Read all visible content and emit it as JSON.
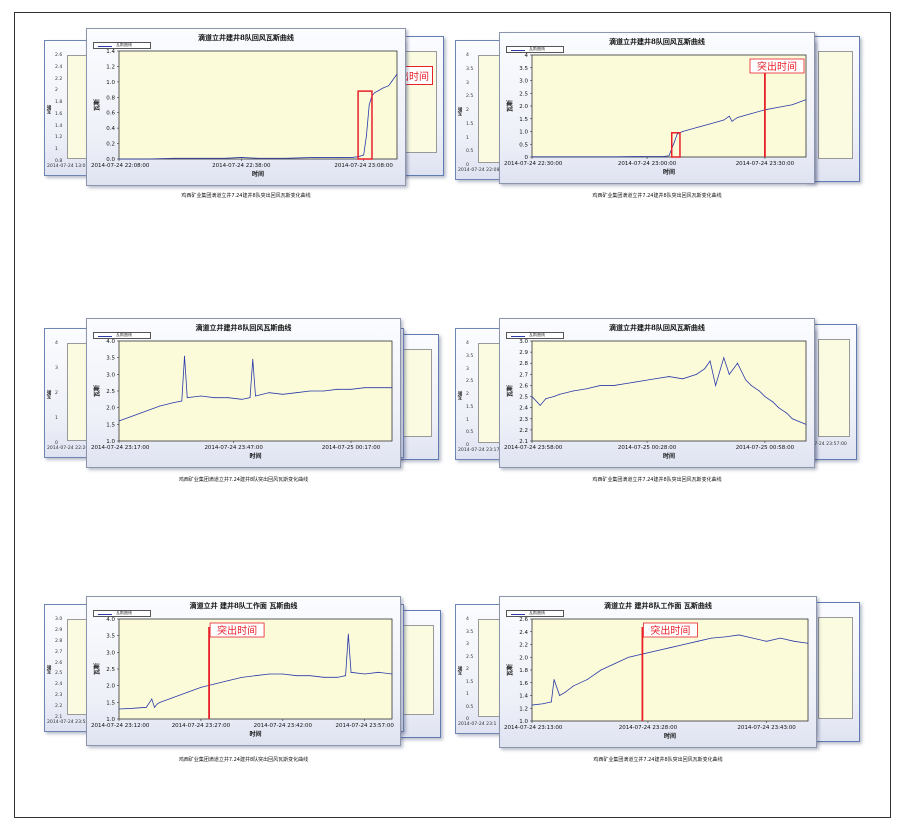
{
  "legend_label": "瓦斯曲线",
  "ylabel": "瓦斯",
  "xlabel": "时间",
  "caption": "鸡西矿业集团滴道立井7.24建井8队突出回风瓦斯变化曲线",
  "colors": {
    "series": "#2b3aa8",
    "plot_bg": "#fbfbda",
    "marker": "#e8202a"
  },
  "panels": [
    {
      "title": "滴道立井建井8队回风瓦斯曲线",
      "back_yticks": [
        "2.6",
        "2.4",
        "2.2",
        "2",
        "1.8",
        "1.6",
        "1.4",
        "1.2",
        "1",
        "0.8"
      ],
      "back_xtick": "2014-07-24 13:0",
      "back_label": "出时间",
      "back_ylabel": "瓦斯"
    },
    {
      "title": "滴道立井建井8队回风瓦斯曲线",
      "back_yticks": [
        "4",
        "3.5",
        "3",
        "2.5",
        "2",
        "1.5",
        "1",
        "0.5",
        "0"
      ],
      "back_xtick": "2014-07-24 22:08",
      "back_label": "",
      "back_ylabel": "瓦斯"
    },
    {
      "title": "滴道立井建井8队回风瓦斯曲线",
      "back_yticks": [
        "4",
        "3",
        "2",
        "1",
        "0"
      ],
      "back_xtick": "2014-07-24 22:20",
      "back_label": "",
      "back_ylabel": "瓦斯"
    },
    {
      "title": "滴道立井建井8队回风瓦斯曲线",
      "back_yticks": [
        "4",
        "3.5",
        "3",
        "2.5",
        "2",
        "1.5",
        "1",
        "0.5",
        "0"
      ],
      "back_xtick": "2014-07-24 23:17",
      "back_label": "",
      "back_ylabel": "瓦斯",
      "back_xtick2": "2014-07-24 23:57:00"
    },
    {
      "title": "滴道立井 建井8队工作面 瓦斯曲线",
      "back_yticks": [
        "3.0",
        "2.9",
        "2.8",
        "2.7",
        "2.6",
        "2.5",
        "2.4",
        "2.3",
        "2.2",
        "2.1"
      ],
      "back_xtick": "2014-07-24 23:58",
      "back_label": "",
      "back_ylabel": "瓦斯"
    },
    {
      "title": "滴道立井 建井8队工作面 瓦斯曲线",
      "back_yticks": [
        "4",
        "3.5",
        "3",
        "2.5",
        "2",
        "1.5",
        "1",
        "0.5",
        "0"
      ],
      "back_xtick": "2014-07-24 23:1",
      "back_label": "",
      "back_ylabel": "瓦斯"
    }
  ],
  "chart_data": [
    {
      "type": "line",
      "title": "滴道立井建井8队回风瓦斯曲线",
      "xlabel": "时间",
      "ylabel": "瓦斯",
      "ylim": [
        0,
        1.4
      ],
      "yticks": [
        "0.0",
        "0.2",
        "0.4",
        "0.6",
        "0.8",
        "1.0",
        "1.2",
        "1.4"
      ],
      "xticks": [
        "2014-07-24 22:08:00",
        "2014-07-24 22:38:00",
        "2014-07-24 23:08:00"
      ],
      "xtick_pos": [
        0,
        0.44,
        0.88
      ],
      "x": [
        0,
        0.05,
        0.1,
        0.2,
        0.3,
        0.38,
        0.44,
        0.5,
        0.6,
        0.7,
        0.8,
        0.84,
        0.86,
        0.87,
        0.88,
        0.89,
        0.9,
        0.91,
        0.92,
        0.93,
        0.95,
        0.97,
        0.98,
        1.0
      ],
      "values": [
        0.0,
        0.0,
        0.0,
        0.01,
        0.01,
        0.01,
        0.02,
        0.01,
        0.01,
        0.02,
        0.02,
        0.02,
        0.03,
        0.04,
        0.05,
        0.3,
        0.7,
        0.82,
        0.86,
        0.88,
        0.92,
        0.95,
        1.0,
        1.1
      ],
      "annotation": {
        "type": "rect",
        "x0": 0.86,
        "x1": 0.91,
        "y0": 0.0,
        "y1": 0.88
      }
    },
    {
      "type": "line",
      "title": "滴道立井建井8队回风瓦斯曲线",
      "xlabel": "时间",
      "ylabel": "瓦斯",
      "ylim": [
        0,
        4
      ],
      "yticks": [
        "0",
        "0.5",
        "1.0",
        "1.5",
        "2.0",
        "2.5",
        "3.0",
        "3.5",
        "4"
      ],
      "xticks": [
        "2014-07-24 22:30:00",
        "2014-07-24 23:00:00",
        "2014-07-24 23:30:00"
      ],
      "xtick_pos": [
        0,
        0.42,
        0.85
      ],
      "x": [
        0,
        0.1,
        0.2,
        0.3,
        0.4,
        0.48,
        0.5,
        0.52,
        0.53,
        0.55,
        0.6,
        0.65,
        0.7,
        0.72,
        0.73,
        0.75,
        0.8,
        0.85,
        0.9,
        0.95,
        1.0
      ],
      "values": [
        0.01,
        0.01,
        0.01,
        0.01,
        0.02,
        0.02,
        0.05,
        0.6,
        0.9,
        1.0,
        1.15,
        1.3,
        1.45,
        1.6,
        1.4,
        1.55,
        1.7,
        1.85,
        1.95,
        2.05,
        2.25
      ],
      "annotation": {
        "type": "rect",
        "x0": 0.51,
        "x1": 0.54,
        "y0": 0.0,
        "y1": 0.95
      },
      "label": "突出时间",
      "marker_x": 0.85,
      "label_text": "突出时间"
    },
    {
      "type": "line",
      "title": "滴道立井建井8队回风瓦斯曲线",
      "xlabel": "时间",
      "ylabel": "瓦斯",
      "ylim": [
        1.0,
        4.0
      ],
      "yticks": [
        "1.0",
        "1.5",
        "2.0",
        "2.5",
        "3.0",
        "3.5",
        "4.0"
      ],
      "xticks": [
        "2014-07-24 23:17:00",
        "2014-07-24 23:47:00",
        "2014-07-25 00:17:00"
      ],
      "xtick_pos": [
        0.0,
        0.42,
        0.85
      ],
      "x": [
        0.0,
        0.05,
        0.1,
        0.15,
        0.2,
        0.23,
        0.24,
        0.25,
        0.3,
        0.35,
        0.4,
        0.45,
        0.48,
        0.49,
        0.5,
        0.55,
        0.6,
        0.65,
        0.7,
        0.75,
        0.8,
        0.85,
        0.9,
        0.95,
        1.0
      ],
      "values": [
        1.6,
        1.75,
        1.9,
        2.05,
        2.15,
        2.2,
        3.55,
        2.3,
        2.35,
        2.3,
        2.3,
        2.25,
        2.3,
        3.45,
        2.35,
        2.45,
        2.4,
        2.45,
        2.5,
        2.5,
        2.55,
        2.55,
        2.6,
        2.6,
        2.6
      ]
    },
    {
      "type": "line",
      "title": "滴道立井建井8队回风瓦斯曲线",
      "xlabel": "时间",
      "ylabel": "瓦斯",
      "ylim": [
        2.1,
        3.0
      ],
      "yticks": [
        "2.1",
        "2.2",
        "2.3",
        "2.4",
        "2.5",
        "2.6",
        "2.7",
        "2.8",
        "2.9",
        "3.0"
      ],
      "xticks": [
        "2014-07-24 23:58:00",
        "2014-07-25 00:28:00",
        "2014-07-25 00:58:00"
      ],
      "xtick_pos": [
        0.0,
        0.42,
        0.85
      ],
      "x": [
        0.0,
        0.03,
        0.05,
        0.08,
        0.1,
        0.15,
        0.2,
        0.25,
        0.3,
        0.35,
        0.4,
        0.45,
        0.5,
        0.55,
        0.6,
        0.63,
        0.65,
        0.67,
        0.7,
        0.72,
        0.75,
        0.78,
        0.8,
        0.83,
        0.85,
        0.88,
        0.9,
        0.93,
        0.95,
        1.0
      ],
      "values": [
        2.5,
        2.42,
        2.48,
        2.5,
        2.52,
        2.55,
        2.57,
        2.6,
        2.6,
        2.62,
        2.64,
        2.66,
        2.68,
        2.66,
        2.7,
        2.75,
        2.82,
        2.6,
        2.85,
        2.7,
        2.8,
        2.65,
        2.6,
        2.55,
        2.5,
        2.45,
        2.4,
        2.35,
        2.3,
        2.25
      ]
    },
    {
      "type": "line",
      "title": "滴道立井 建井8队工作面 瓦斯曲线",
      "xlabel": "时间",
      "ylabel": "瓦斯",
      "ylim": [
        1.0,
        4.0
      ],
      "yticks": [
        "1.0",
        "1.5",
        "2.0",
        "2.5",
        "3.0",
        "3.5",
        "4.0"
      ],
      "xticks": [
        "2014-07-24 23:12:00",
        "2014-07-24 23:27:00",
        "2014-07-24 23:42:00",
        "2014-07-24 23:57:00"
      ],
      "xtick_pos": [
        0.0,
        0.3,
        0.6,
        0.9
      ],
      "x": [
        0.0,
        0.05,
        0.1,
        0.12,
        0.13,
        0.14,
        0.15,
        0.2,
        0.25,
        0.3,
        0.35,
        0.4,
        0.45,
        0.5,
        0.55,
        0.6,
        0.65,
        0.7,
        0.75,
        0.8,
        0.83,
        0.84,
        0.85,
        0.9,
        0.95,
        1.0
      ],
      "values": [
        1.3,
        1.32,
        1.35,
        1.6,
        1.35,
        1.45,
        1.5,
        1.65,
        1.8,
        1.95,
        2.05,
        2.15,
        2.25,
        2.3,
        2.35,
        2.35,
        2.3,
        2.3,
        2.25,
        2.25,
        2.3,
        3.55,
        2.4,
        2.35,
        2.4,
        2.35
      ],
      "marker_x": 0.33,
      "label_text": "突出时间"
    },
    {
      "type": "line",
      "title": "滴道立井 建井8队工作面 瓦斯曲线",
      "xlabel": "时间",
      "ylabel": "瓦斯",
      "ylim": [
        1.0,
        2.6
      ],
      "yticks": [
        "1.0",
        "1.2",
        "1.4",
        "1.6",
        "1.8",
        "2.0",
        "2.2",
        "2.4",
        "2.6"
      ],
      "xticks": [
        "2014-07-24 23:13:00",
        "2014-07-24 23:28:00",
        "2014-07-24 23:43:00"
      ],
      "xtick_pos": [
        0.0,
        0.42,
        0.85
      ],
      "x": [
        0.0,
        0.04,
        0.07,
        0.08,
        0.1,
        0.12,
        0.15,
        0.2,
        0.25,
        0.3,
        0.35,
        0.4,
        0.45,
        0.5,
        0.55,
        0.6,
        0.65,
        0.7,
        0.75,
        0.8,
        0.85,
        0.9,
        0.95,
        1.0
      ],
      "values": [
        1.25,
        1.27,
        1.3,
        1.65,
        1.4,
        1.45,
        1.55,
        1.65,
        1.8,
        1.9,
        2.0,
        2.05,
        2.1,
        2.15,
        2.2,
        2.25,
        2.3,
        2.32,
        2.35,
        2.3,
        2.25,
        2.3,
        2.25,
        2.22
      ],
      "marker_x": 0.4,
      "label_text": "突出时间"
    }
  ]
}
